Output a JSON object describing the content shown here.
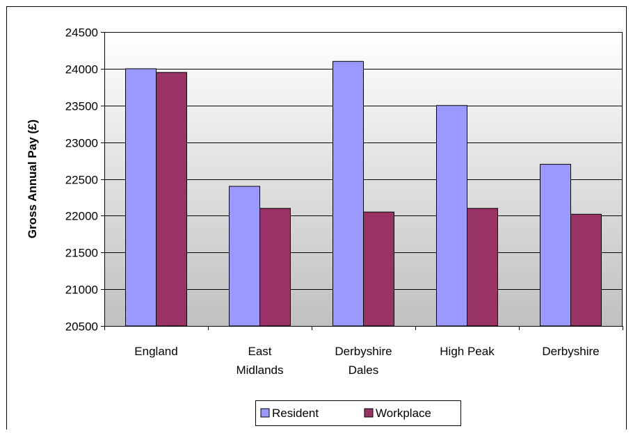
{
  "chart_data": {
    "type": "bar",
    "title": "",
    "xlabel": "",
    "ylabel": "Gross Annual Pay (£)",
    "ylim": [
      20500,
      24500
    ],
    "yticks": [
      20500,
      21000,
      21500,
      22000,
      22500,
      23000,
      23500,
      24000,
      24500
    ],
    "categories": [
      [
        "England"
      ],
      [
        "East",
        "Midlands"
      ],
      [
        "Derbyshire",
        "Dales"
      ],
      [
        "High Peak"
      ],
      [
        "Derbyshire"
      ]
    ],
    "series": [
      {
        "name": "Resident",
        "color": "#9999ff",
        "values": [
          24000,
          22400,
          24100,
          23500,
          22700
        ]
      },
      {
        "name": "Workplace",
        "color": "#993366",
        "values": [
          23950,
          22100,
          22050,
          22100,
          22020
        ]
      }
    ],
    "grid": true,
    "legend_position": "bottom"
  }
}
